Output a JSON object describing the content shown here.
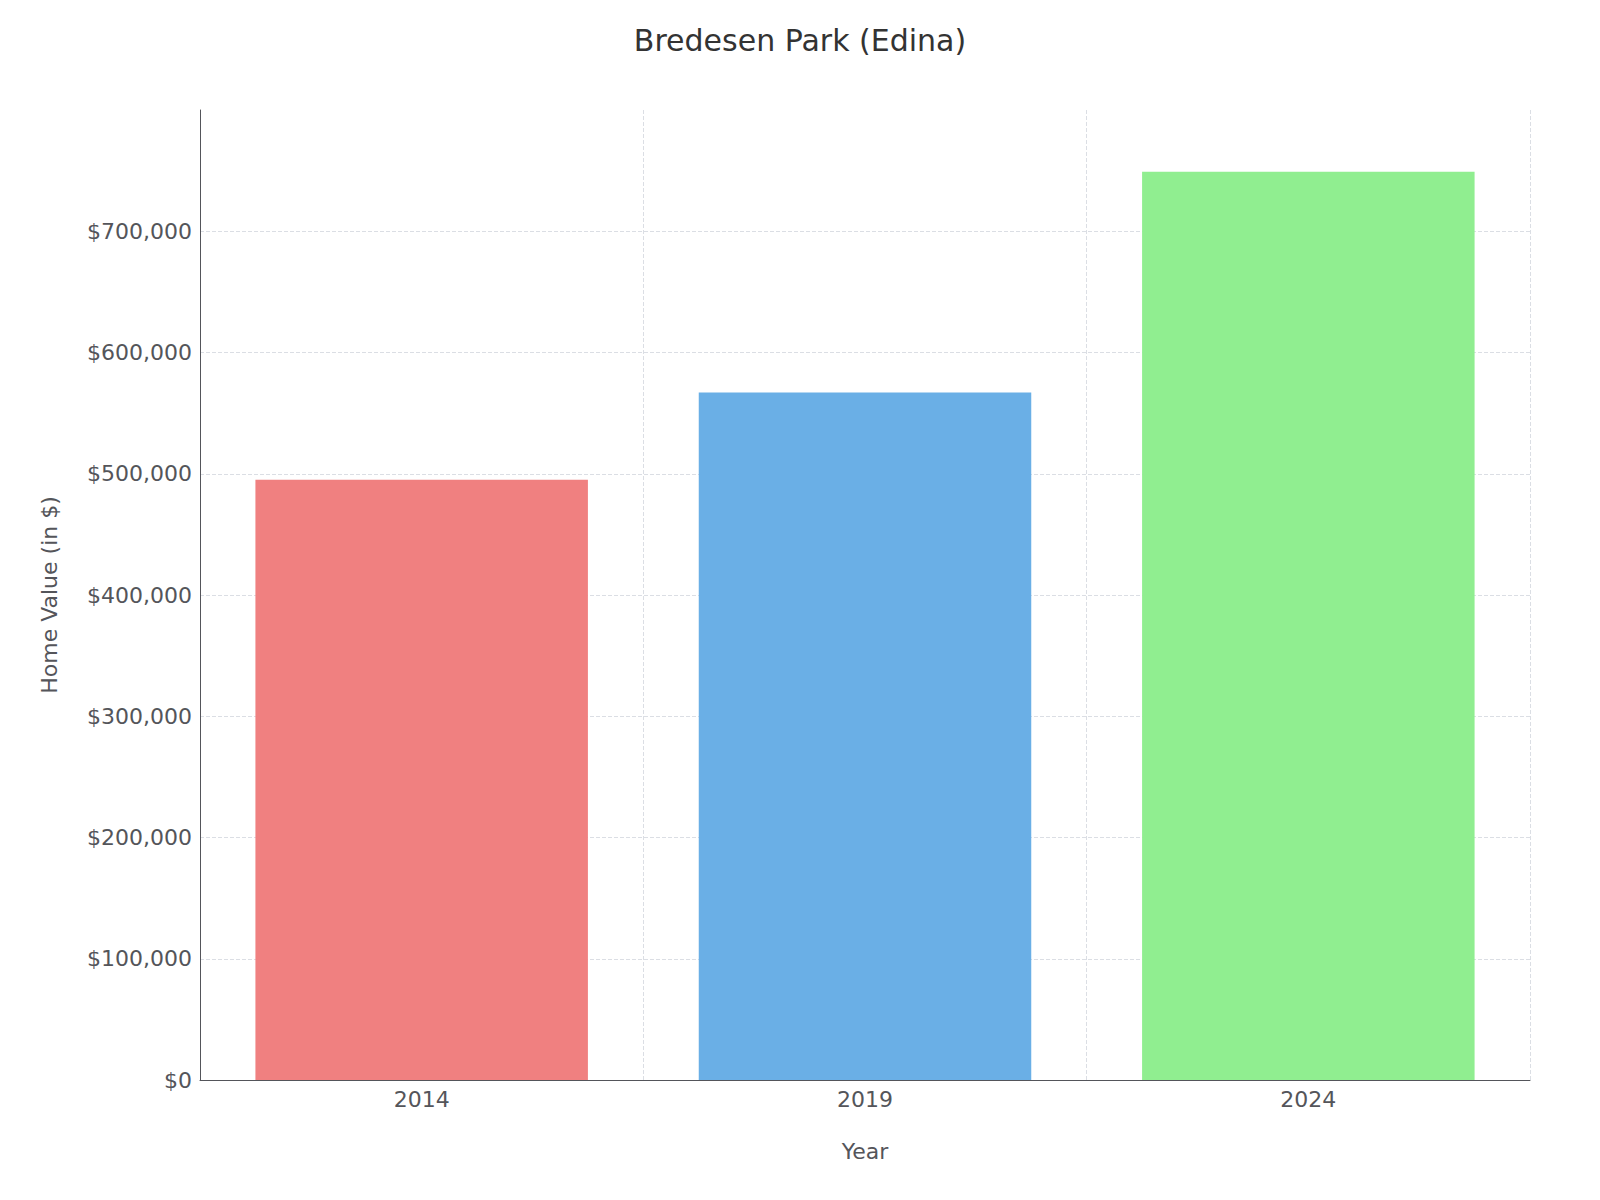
{
  "chart_data": {
    "type": "bar",
    "title": "Bredesen Park (Edina)",
    "categories": [
      "2014",
      "2019",
      "2024"
    ],
    "values": [
      495000,
      567000,
      749000
    ],
    "colors": [
      "#F08080",
      "#6AAFE6",
      "#90EE90"
    ],
    "xlabel": "Year",
    "ylabel": "Home Value (in $)",
    "ylim": [
      0,
      800000
    ],
    "yticks": [
      {
        "value": 0,
        "label": "$0"
      },
      {
        "value": 100000,
        "label": "$100,000"
      },
      {
        "value": 200000,
        "label": "$200,000"
      },
      {
        "value": 300000,
        "label": "$300,000"
      },
      {
        "value": 400000,
        "label": "$400,000"
      },
      {
        "value": 500000,
        "label": "$500,000"
      },
      {
        "value": 600000,
        "label": "$600,000"
      },
      {
        "value": 700000,
        "label": "$700,000"
      }
    ],
    "grid": true
  }
}
